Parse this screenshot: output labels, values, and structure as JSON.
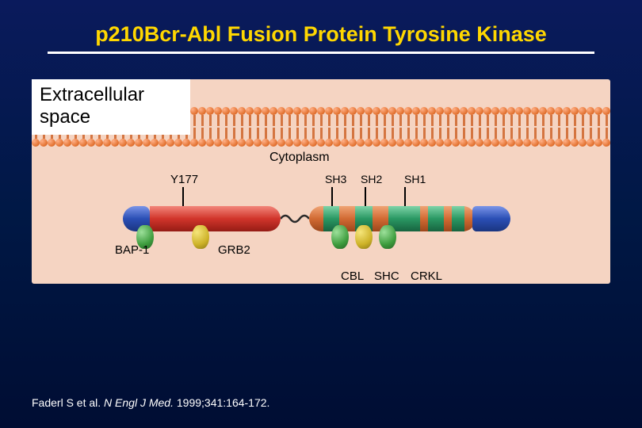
{
  "title": "p210Bcr-Abl Fusion Protein Tyrosine Kinase",
  "regions": {
    "extracellular_line1": "Extracellular",
    "extracellular_line2": "space",
    "cytoplasm": "Cytoplasm"
  },
  "domains": {
    "y177": "Y177",
    "sh3": "SH3",
    "sh2": "SH2",
    "sh1": "SH1"
  },
  "adapters": {
    "bap1": "BAP-1",
    "grb2": "GRB2",
    "cbl": "CBL",
    "shc": "SHC",
    "crkl": "CRKL"
  },
  "citation": {
    "authors": "Faderl S et al.",
    "journal": "N Engl J Med.",
    "yearref": "1999;341:164-172."
  },
  "style": {
    "title_color": "#ffd700",
    "bg_gradient_top": "#0a1a5c",
    "bg_gradient_bottom": "#000d33",
    "diagram_bg": "#f5d4c2",
    "membrane_head": "#e67838",
    "bcr_color": "#d1352b",
    "abl_color": "#d16a33",
    "sh_stripe_color": "#2a9863",
    "cap_color": "#2b4fb5",
    "adapter_green": "#3d9c3d",
    "adapter_yellow": "#cdb228",
    "protein_type": "schematic-fusion-protein"
  }
}
